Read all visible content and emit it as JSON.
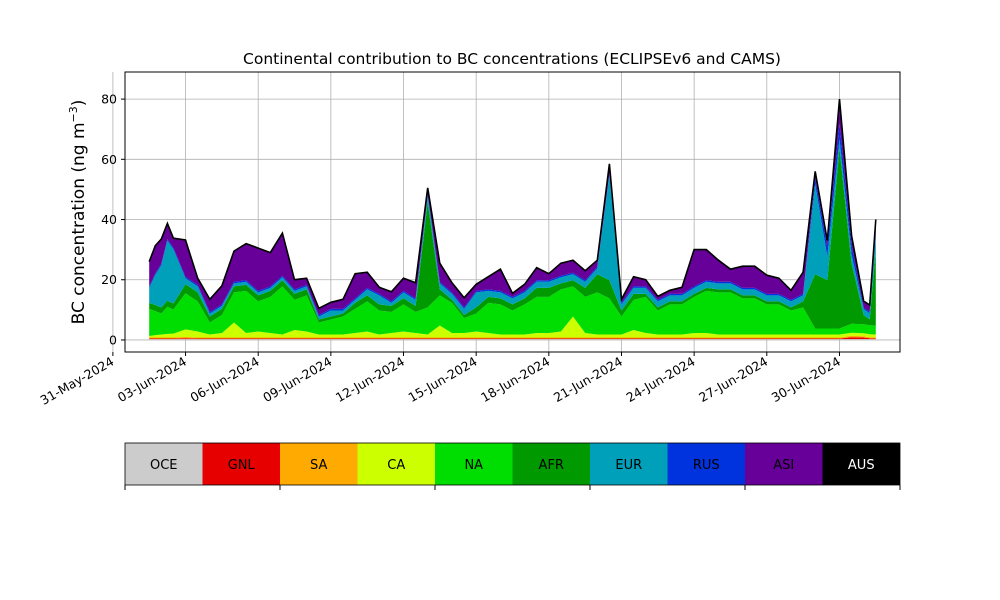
{
  "chart_data": {
    "type": "area",
    "stacked": true,
    "title": "Continental contribution to BC concentrations (ECLIPSEv6 and CAMS)",
    "ylabel": "BC concentration (ng m",
    "ylabel_sup": "−3",
    "ylabel_close": ")",
    "xlim": [
      "2024-05-31T12:00",
      "2024-07-02T12:00"
    ],
    "ylim": [
      -4,
      89
    ],
    "yticks": [
      0,
      20,
      40,
      60,
      80
    ],
    "xticks": [
      "31-May-2024",
      "03-Jun-2024",
      "06-Jun-2024",
      "09-Jun-2024",
      "12-Jun-2024",
      "15-Jun-2024",
      "18-Jun-2024",
      "21-Jun-2024",
      "24-Jun-2024",
      "27-Jun-2024",
      "30-Jun-2024"
    ],
    "grid": true,
    "x": [
      "2024-06-01T12:00",
      "2024-06-01T18:00",
      "2024-06-02T00:00",
      "2024-06-02T06:00",
      "2024-06-02T12:00",
      "2024-06-03T00:00",
      "2024-06-03T12:00",
      "2024-06-04T00:00",
      "2024-06-04T12:00",
      "2024-06-05T00:00",
      "2024-06-05T12:00",
      "2024-06-06T00:00",
      "2024-06-06T12:00",
      "2024-06-07T00:00",
      "2024-06-07T12:00",
      "2024-06-08T00:00",
      "2024-06-08T12:00",
      "2024-06-09T00:00",
      "2024-06-09T12:00",
      "2024-06-10T00:00",
      "2024-06-10T12:00",
      "2024-06-11T00:00",
      "2024-06-11T12:00",
      "2024-06-12T00:00",
      "2024-06-12T12:00",
      "2024-06-13T00:00",
      "2024-06-13T12:00",
      "2024-06-14T00:00",
      "2024-06-14T12:00",
      "2024-06-15T00:00",
      "2024-06-15T12:00",
      "2024-06-16T00:00",
      "2024-06-16T12:00",
      "2024-06-17T00:00",
      "2024-06-17T12:00",
      "2024-06-18T00:00",
      "2024-06-18T12:00",
      "2024-06-19T00:00",
      "2024-06-19T12:00",
      "2024-06-20T00:00",
      "2024-06-20T12:00",
      "2024-06-21T00:00",
      "2024-06-21T12:00",
      "2024-06-22T00:00",
      "2024-06-22T12:00",
      "2024-06-23T00:00",
      "2024-06-23T12:00",
      "2024-06-24T00:00",
      "2024-06-24T12:00",
      "2024-06-25T00:00",
      "2024-06-25T12:00",
      "2024-06-26T00:00",
      "2024-06-26T12:00",
      "2024-06-27T00:00",
      "2024-06-27T12:00",
      "2024-06-28T00:00",
      "2024-06-28T12:00",
      "2024-06-29T00:00",
      "2024-06-29T12:00",
      "2024-06-30T00:00",
      "2024-06-30T12:00",
      "2024-07-01T00:00",
      "2024-07-01T06:00",
      "2024-07-01T12:00"
    ],
    "series": [
      {
        "name": "OCE",
        "color": "#cccccc",
        "values": [
          0.3,
          0.3,
          0.3,
          0.3,
          0.3,
          0.3,
          0.3,
          0.3,
          0.3,
          0.3,
          0.3,
          0.3,
          0.3,
          0.3,
          0.3,
          0.3,
          0.3,
          0.3,
          0.3,
          0.3,
          0.3,
          0.3,
          0.3,
          0.3,
          0.3,
          0.3,
          0.3,
          0.3,
          0.3,
          0.3,
          0.3,
          0.3,
          0.3,
          0.3,
          0.3,
          0.3,
          0.3,
          0.3,
          0.3,
          0.3,
          0.3,
          0.3,
          0.3,
          0.3,
          0.3,
          0.3,
          0.3,
          0.3,
          0.3,
          0.3,
          0.3,
          0.3,
          0.3,
          0.3,
          0.3,
          0.3,
          0.3,
          0.3,
          0.3,
          0.3,
          0.3,
          0.3,
          0.3,
          0.3
        ]
      },
      {
        "name": "GNL",
        "color": "#e60000",
        "values": [
          0.2,
          0.2,
          0.2,
          0.2,
          0.2,
          0.3,
          0.2,
          0.2,
          0.2,
          0.2,
          0.2,
          0.2,
          0.2,
          0.2,
          0.2,
          0.2,
          0.2,
          0.2,
          0.2,
          0.2,
          0.2,
          0.2,
          0.2,
          0.2,
          0.2,
          0.2,
          0.2,
          0.2,
          0.2,
          0.2,
          0.2,
          0.2,
          0.2,
          0.2,
          0.2,
          0.2,
          0.2,
          0.2,
          0.2,
          0.2,
          0.2,
          0.2,
          0.2,
          0.2,
          0.2,
          0.2,
          0.2,
          0.2,
          0.2,
          0.2,
          0.2,
          0.2,
          0.2,
          0.2,
          0.2,
          0.2,
          0.2,
          0.2,
          0.2,
          0.2,
          0.6,
          0.5,
          0.3,
          0.2
        ]
      },
      {
        "name": "SA",
        "color": "#ffaa00",
        "values": [
          0.3,
          0.3,
          0.3,
          0.3,
          0.3,
          0.4,
          0.3,
          0.3,
          0.3,
          0.3,
          0.3,
          0.3,
          0.3,
          0.3,
          0.3,
          0.3,
          0.3,
          0.3,
          0.3,
          0.3,
          0.3,
          0.3,
          0.3,
          0.3,
          0.3,
          0.3,
          0.3,
          0.3,
          0.3,
          0.3,
          0.3,
          0.3,
          0.3,
          0.3,
          0.3,
          0.3,
          0.3,
          0.3,
          0.3,
          0.3,
          0.3,
          0.3,
          0.3,
          0.3,
          0.3,
          0.3,
          0.3,
          0.3,
          0.3,
          0.3,
          0.3,
          0.3,
          0.3,
          0.3,
          0.3,
          0.3,
          0.3,
          0.3,
          0.3,
          0.3,
          0.5,
          0.4,
          0.3,
          0.3
        ]
      },
      {
        "name": "CA",
        "color": "#ccff00",
        "values": [
          0.5,
          0.8,
          1.0,
          1.2,
          1.3,
          2.5,
          2.0,
          1.0,
          1.5,
          5.0,
          1.5,
          2.0,
          1.5,
          1.0,
          2.5,
          2.0,
          1.0,
          1.0,
          1.0,
          1.5,
          2.0,
          1.0,
          1.5,
          2.0,
          1.5,
          1.0,
          4.0,
          1.5,
          1.5,
          2.0,
          1.5,
          1.0,
          1.0,
          1.0,
          1.5,
          1.5,
          2.0,
          7.0,
          1.5,
          1.0,
          1.0,
          1.0,
          2.5,
          1.5,
          1.0,
          1.0,
          1.0,
          1.5,
          1.5,
          1.0,
          1.0,
          1.0,
          1.0,
          1.0,
          1.0,
          1.0,
          1.0,
          1.0,
          1.0,
          1.0,
          1.0,
          1.0,
          1.0,
          1.0
        ]
      },
      {
        "name": "NA",
        "color": "#00dd00",
        "values": [
          9.0,
          8.0,
          7.0,
          9.0,
          8.0,
          12.0,
          10.0,
          4.0,
          6.0,
          10.0,
          14.0,
          10.0,
          12.0,
          16.0,
          10.0,
          12.0,
          4.0,
          5.0,
          6.0,
          8.0,
          10.0,
          8.0,
          7.0,
          9.0,
          7.0,
          9.0,
          10.0,
          10.0,
          5.0,
          6.0,
          10.0,
          10.0,
          8.0,
          10.0,
          12.0,
          12.0,
          14.0,
          10.0,
          12.0,
          14.0,
          12.0,
          6.0,
          10.0,
          12.0,
          8.0,
          10.0,
          10.0,
          12.0,
          14.0,
          14.0,
          14.0,
          12.0,
          12.0,
          10.0,
          10.0,
          8.0,
          9.0,
          2.0,
          2.0,
          2.0,
          3.0,
          3.0,
          3.0,
          3.0
        ]
      },
      {
        "name": "AFR",
        "color": "#009900",
        "values": [
          2.0,
          2.0,
          2.0,
          2.0,
          2.0,
          3.0,
          3.0,
          2.0,
          2.0,
          2.0,
          2.0,
          2.0,
          2.0,
          2.0,
          2.0,
          2.0,
          1.0,
          1.0,
          1.0,
          2.0,
          2.0,
          2.0,
          2.0,
          2.0,
          2.0,
          35.0,
          2.0,
          1.0,
          1.0,
          2.0,
          2.0,
          2.0,
          2.0,
          2.0,
          3.0,
          3.0,
          2.0,
          2.0,
          3.0,
          6.0,
          6.0,
          2.0,
          2.0,
          1.0,
          1.0,
          1.0,
          1.0,
          1.0,
          1.0,
          1.0,
          1.0,
          1.0,
          1.0,
          1.0,
          1.0,
          1.0,
          2.0,
          18.0,
          16.0,
          60.0,
          20.0,
          3.0,
          2.0,
          25.0
        ]
      },
      {
        "name": "EUR",
        "color": "#00a0bb",
        "values": [
          5.0,
          10.0,
          14.0,
          20.0,
          18.0,
          2.0,
          2.0,
          1.0,
          1.0,
          1.0,
          1.0,
          1.0,
          1.0,
          1.0,
          1.0,
          1.0,
          1.0,
          2.0,
          1.0,
          1.0,
          2.0,
          3.0,
          1.0,
          2.0,
          2.0,
          2.0,
          2.0,
          2.0,
          2.0,
          5.0,
          2.0,
          2.0,
          2.0,
          2.0,
          2.0,
          2.0,
          2.0,
          2.0,
          2.0,
          2.0,
          35.0,
          2.0,
          2.0,
          2.0,
          2.0,
          2.0,
          2.0,
          2.0,
          2.0,
          2.0,
          2.0,
          2.0,
          2.0,
          2.0,
          2.0,
          2.0,
          2.0,
          30.0,
          8.0,
          3.0,
          3.0,
          2.0,
          2.0,
          5.0
        ]
      },
      {
        "name": "RUS",
        "color": "#0033dd",
        "values": [
          0.5,
          0.5,
          0.5,
          0.5,
          0.5,
          0.5,
          0.5,
          0.5,
          0.5,
          0.5,
          0.5,
          0.5,
          0.5,
          0.5,
          0.5,
          0.5,
          0.5,
          0.5,
          0.5,
          0.5,
          0.5,
          0.5,
          0.5,
          0.5,
          0.5,
          0.5,
          0.5,
          0.5,
          0.5,
          0.5,
          0.5,
          0.5,
          0.5,
          0.5,
          0.5,
          0.5,
          0.5,
          0.5,
          0.5,
          0.5,
          0.5,
          0.5,
          0.5,
          0.5,
          0.5,
          0.5,
          0.5,
          0.5,
          0.5,
          0.5,
          0.5,
          0.5,
          0.5,
          0.5,
          0.5,
          0.5,
          0.5,
          2.0,
          3.0,
          5.0,
          3.0,
          0.5,
          0.5,
          1.0
        ]
      },
      {
        "name": "ASI",
        "color": "#660099",
        "values": [
          8.0,
          9.0,
          8.0,
          5.0,
          3.0,
          12.0,
          2.0,
          4.0,
          6.0,
          10.0,
          12.0,
          14.0,
          11.0,
          14.0,
          3.0,
          2.0,
          2.0,
          2.0,
          3.0,
          8.0,
          5.0,
          2.0,
          3.0,
          4.0,
          5.0,
          2.0,
          6.0,
          3.0,
          3.0,
          2.0,
          4.0,
          7.0,
          1.0,
          2.0,
          4.0,
          2.0,
          4.0,
          4.0,
          3.0,
          2.0,
          3.0,
          1.0,
          3.0,
          2.0,
          1.0,
          1.0,
          2.0,
          12.0,
          10.0,
          7.0,
          4.0,
          7.0,
          7.0,
          6.0,
          5.0,
          3.0,
          7.0,
          2.0,
          2.0,
          8.0,
          3.0,
          2.0,
          2.0,
          4.0
        ]
      },
      {
        "name": "AUS",
        "color": "#000000",
        "values": [
          0.2,
          0.2,
          0.2,
          0.2,
          0.2,
          0.2,
          0.2,
          0.2,
          0.2,
          0.2,
          0.2,
          0.2,
          0.2,
          0.2,
          0.2,
          0.2,
          0.2,
          0.2,
          0.2,
          0.2,
          0.2,
          0.2,
          0.2,
          0.2,
          0.2,
          0.2,
          0.2,
          0.2,
          0.2,
          0.2,
          0.2,
          0.2,
          0.2,
          0.2,
          0.2,
          0.2,
          0.2,
          0.2,
          0.2,
          0.2,
          0.2,
          0.2,
          0.2,
          0.2,
          0.2,
          0.2,
          0.2,
          0.2,
          0.2,
          0.2,
          0.2,
          0.2,
          0.2,
          0.2,
          0.2,
          0.2,
          0.2,
          0.2,
          0.2,
          0.2,
          0.2,
          0.2,
          0.2,
          0.2
        ]
      }
    ],
    "legend": {
      "placement": "bottom",
      "items": [
        {
          "label": "OCE",
          "color": "#cccccc"
        },
        {
          "label": "GNL",
          "color": "#e60000"
        },
        {
          "label": "SA",
          "color": "#ffaa00"
        },
        {
          "label": "CA",
          "color": "#ccff00"
        },
        {
          "label": "NA",
          "color": "#00dd00"
        },
        {
          "label": "AFR",
          "color": "#009900"
        },
        {
          "label": "EUR",
          "color": "#00a0bb"
        },
        {
          "label": "RUS",
          "color": "#0033dd"
        },
        {
          "label": "ASI",
          "color": "#660099"
        },
        {
          "label": "AUS",
          "color": "#000000"
        }
      ]
    }
  }
}
